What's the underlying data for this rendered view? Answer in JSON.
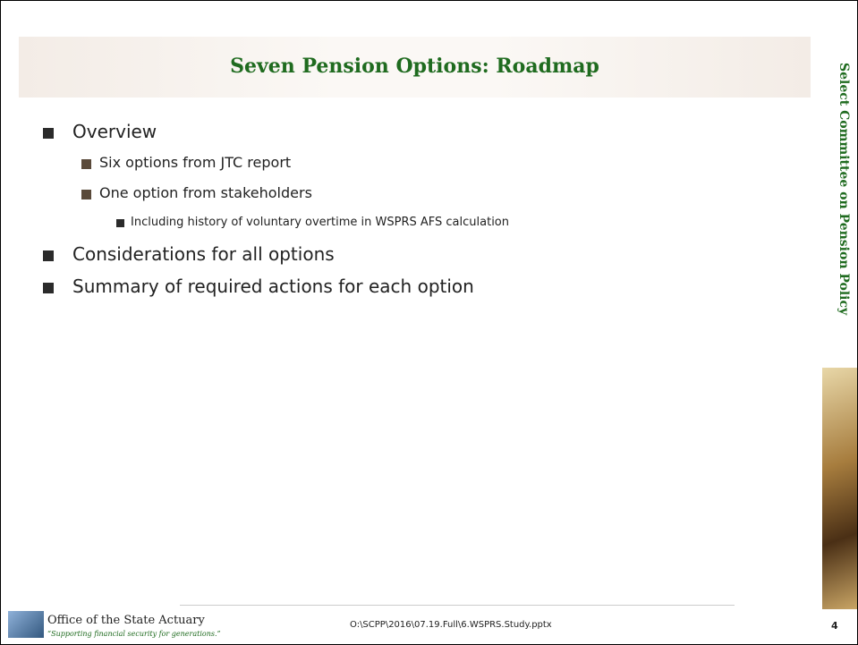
{
  "slide": {
    "title": "Seven Pension Options:  Roadmap",
    "sidebar": "Select Committee on Pension Policy",
    "bullets": [
      {
        "text": "Overview",
        "children": [
          {
            "text": "Six options from JTC report",
            "children": []
          },
          {
            "text": "One option from stakeholders",
            "children": [
              {
                "text": "Including history of voluntary overtime in WSPRS AFS calculation"
              }
            ]
          }
        ]
      },
      {
        "text": "Considerations for all options",
        "children": []
      },
      {
        "text": "Summary of required actions for each option",
        "children": []
      }
    ],
    "footer": {
      "org": "Office of the State Actuary",
      "tagline": "“Supporting financial security for generations.”",
      "path": "O:\\SCPP\\2016\\07.19.Full\\6.WSPRS.Study.pptx",
      "page": "4"
    }
  }
}
